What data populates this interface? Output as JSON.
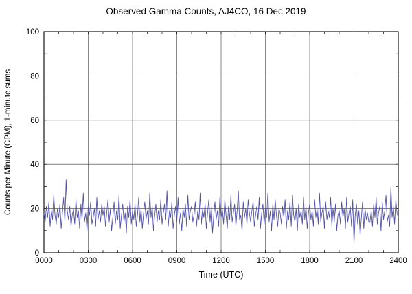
{
  "title": "Observed Gamma Counts, AJ4CO, 16 Dec 2019",
  "chart_data": {
    "type": "line",
    "title": "Observed Gamma Counts, AJ4CO, 16 Dec 2019",
    "xlabel": "Time (UTC)",
    "ylabel": "Counts per Minute (CPM), 1-minute sums",
    "x_tick_labels": [
      "0000",
      "0300",
      "0600",
      "0900",
      "1200",
      "1500",
      "1800",
      "2100",
      "2400"
    ],
    "y_tick_labels": [
      "0",
      "20",
      "40",
      "60",
      "80",
      "100"
    ],
    "xlim_minutes": [
      0,
      1440
    ],
    "ylim": [
      0,
      100
    ],
    "x_step_minutes": 5,
    "grid": true,
    "grid_color": "#3a3a3a",
    "line_color": "#5252a8",
    "frame_color": "#000000",
    "values": [
      18,
      14,
      21,
      16,
      23,
      12,
      19,
      15,
      26,
      17,
      13,
      20,
      16,
      22,
      11,
      18,
      25,
      14,
      33,
      19,
      15,
      21,
      12,
      17,
      20,
      13,
      24,
      16,
      19,
      11,
      22,
      15,
      27,
      14,
      18,
      10,
      21,
      17,
      23,
      13,
      16,
      20,
      12,
      25,
      15,
      19,
      14,
      22,
      17,
      21,
      12,
      18,
      24,
      14,
      20,
      10,
      16,
      23,
      13,
      19,
      15,
      26,
      11,
      17,
      22,
      14,
      18,
      9,
      21,
      16,
      24,
      13,
      19,
      15,
      22,
      12,
      17,
      25,
      14,
      20,
      11,
      18,
      23,
      15,
      19,
      13,
      27,
      16,
      21,
      10,
      17,
      22,
      14,
      19,
      15,
      24,
      13,
      18,
      22,
      15,
      28,
      12,
      19,
      16,
      23,
      11,
      17,
      21,
      14,
      25,
      13,
      18,
      10,
      20,
      16,
      22,
      12,
      26,
      15,
      19,
      21,
      14,
      17,
      23,
      12,
      19,
      15,
      27,
      13,
      20,
      16,
      22,
      11,
      18,
      24,
      14,
      21,
      9,
      17,
      23,
      15,
      19,
      12,
      25,
      16,
      20,
      13,
      24,
      17,
      11,
      21,
      15,
      26,
      14,
      18,
      22,
      12,
      19,
      28,
      15,
      17,
      10,
      23,
      16,
      20,
      13,
      24,
      18,
      14,
      19,
      23,
      12,
      17,
      21,
      15,
      25,
      11,
      18,
      22,
      13,
      20,
      16,
      27,
      14,
      19,
      10,
      22,
      15,
      24,
      17,
      12,
      20,
      18,
      13,
      21,
      16,
      24,
      11,
      19,
      15,
      23,
      12,
      26,
      17,
      14,
      20,
      10,
      22,
      16,
      19,
      13,
      25,
      15,
      21,
      11,
      18,
      22,
      15,
      19,
      12,
      24,
      16,
      20,
      13,
      27,
      14,
      18,
      21,
      11,
      23,
      15,
      19,
      16,
      25,
      12,
      20,
      14,
      22,
      10,
      17,
      19,
      13,
      23,
      16,
      20,
      11,
      25,
      14,
      18,
      21,
      12,
      24,
      4,
      17,
      22,
      13,
      19,
      8,
      16,
      23,
      11,
      20,
      15,
      18,
      14,
      14,
      19,
      12,
      22,
      16,
      25,
      13,
      18,
      21,
      10,
      23,
      15,
      19,
      26,
      14,
      17,
      12,
      30,
      16,
      21,
      13,
      24,
      18,
      16
    ]
  }
}
